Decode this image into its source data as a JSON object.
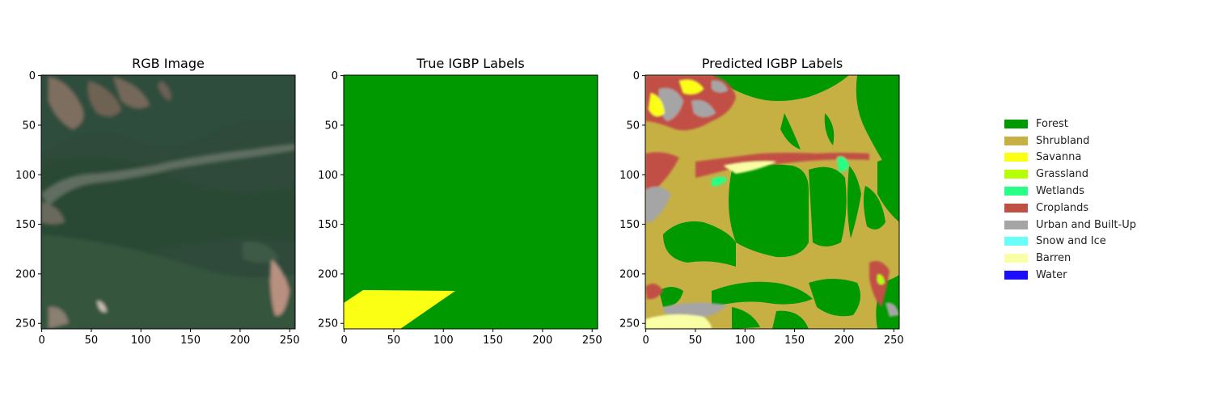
{
  "figure": {
    "panels": [
      {
        "title": "RGB Image"
      },
      {
        "title": "True IGBP Labels"
      },
      {
        "title": "Predicted IGBP Labels"
      }
    ]
  },
  "chart_data": [
    {
      "type": "heatmap",
      "title": "RGB Image",
      "xlim": [
        0,
        255
      ],
      "ylim": [
        255,
        0
      ],
      "xticks": [
        0,
        50,
        100,
        150,
        200,
        250
      ],
      "yticks": [
        0,
        50,
        100,
        150,
        200,
        250
      ],
      "content": "satellite RGB image"
    },
    {
      "type": "heatmap",
      "title": "True IGBP Labels",
      "xlim": [
        0,
        255
      ],
      "ylim": [
        255,
        0
      ],
      "xticks": [
        0,
        50,
        100,
        150,
        200,
        250
      ],
      "yticks": [
        0,
        50,
        100,
        150,
        200,
        250
      ],
      "classes_present": [
        "Forest",
        "Savanna"
      ]
    },
    {
      "type": "heatmap",
      "title": "Predicted IGBP Labels",
      "xlim": [
        0,
        255
      ],
      "ylim": [
        255,
        0
      ],
      "xticks": [
        0,
        50,
        100,
        150,
        200,
        250
      ],
      "yticks": [
        0,
        50,
        100,
        150,
        200,
        250
      ],
      "classes_present": [
        "Forest",
        "Shrubland",
        "Savanna",
        "Grassland",
        "Wetlands",
        "Croplands",
        "Urban and Built-Up",
        "Barren"
      ]
    }
  ],
  "legend": {
    "placement": "right",
    "items": [
      {
        "label": "Forest",
        "color": "#009900"
      },
      {
        "label": "Shrubland",
        "color": "#c6b044"
      },
      {
        "label": "Savanna",
        "color": "#fbff13"
      },
      {
        "label": "Grassland",
        "color": "#b6ff05"
      },
      {
        "label": "Wetlands",
        "color": "#27ff87"
      },
      {
        "label": "Croplands",
        "color": "#c24f44"
      },
      {
        "label": "Urban and Built-Up",
        "color": "#a5a5a5"
      },
      {
        "label": "Snow and Ice",
        "color": "#69fff8"
      },
      {
        "label": "Barren",
        "color": "#f9ffa4"
      },
      {
        "label": "Water",
        "color": "#1c0dff"
      }
    ]
  }
}
